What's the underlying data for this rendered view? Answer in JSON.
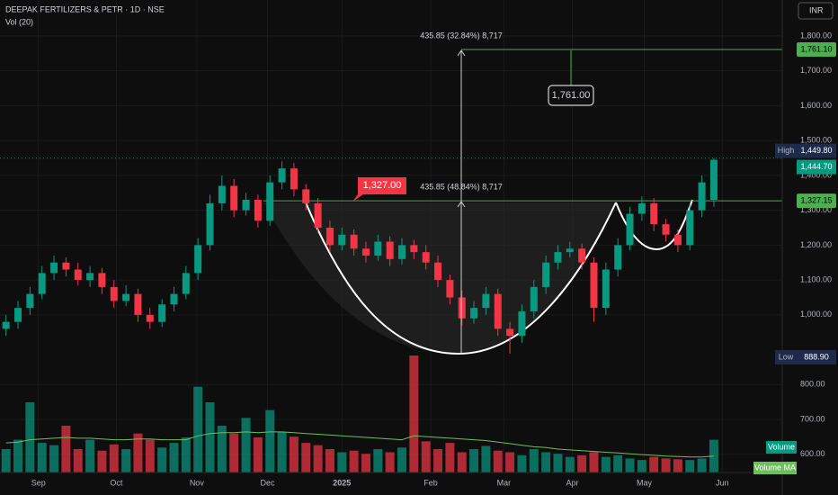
{
  "chart_data": {
    "type": "candlestick",
    "title": "DEEPAK FERTILIZERS & PETR · 1D · NSE",
    "subtitle": "Vol (20)",
    "currency": "INR",
    "up_color": "#089981",
    "down_color": "#f23645",
    "grid": true,
    "xlim": [
      -0.5,
      64.7
    ],
    "ylim": [
      548,
      1903
    ],
    "xticks": [
      {
        "value": 2.7,
        "label": "Sep"
      },
      {
        "value": 9.2,
        "label": "Oct"
      },
      {
        "value": 15.9,
        "label": "Nov"
      },
      {
        "value": 21.8,
        "label": "Dec"
      },
      {
        "value": 28.0,
        "label": "2025"
      },
      {
        "value": 35.4,
        "label": "Feb"
      },
      {
        "value": 41.5,
        "label": "Mar"
      },
      {
        "value": 47.2,
        "label": "Apr"
      },
      {
        "value": 53.2,
        "label": "May"
      },
      {
        "value": 59.7,
        "label": "Jun"
      }
    ],
    "yticks": [
      {
        "value": 1800,
        "label": "1,800.00"
      },
      {
        "value": 1700,
        "label": "1,700.00"
      },
      {
        "value": 1600,
        "label": "1,600.00"
      },
      {
        "value": 1500,
        "label": "1,500.00"
      },
      {
        "value": 1400,
        "label": "1,400.00"
      },
      {
        "value": 1300,
        "label": "1,300.00"
      },
      {
        "value": 1200,
        "label": "1,200.00"
      },
      {
        "value": 1100,
        "label": "1,100.00"
      },
      {
        "value": 1000,
        "label": "1,000.00"
      },
      {
        "value": 800,
        "label": "800.00"
      },
      {
        "value": 700,
        "label": "700.00"
      },
      {
        "value": 600,
        "label": "600.00"
      }
    ],
    "open": [
      960,
      980,
      1020,
      1060,
      1120,
      1150,
      1130,
      1100,
      1120,
      1080,
      1040,
      1060,
      1000,
      980,
      1030,
      1060,
      1120,
      1200,
      1320,
      1370,
      1300,
      1330,
      1270,
      1380,
      1420,
      1360,
      1320,
      1250,
      1200,
      1230,
      1190,
      1170,
      1210,
      1160,
      1200,
      1180,
      1150,
      1100,
      1050,
      990,
      1020,
      1060,
      960,
      940,
      1010,
      1080,
      1150,
      1180,
      1190,
      1150,
      1020,
      1130,
      1200,
      1290,
      1320,
      1260,
      1230,
      1200,
      1300,
      1330
    ],
    "high": [
      1000,
      1040,
      1080,
      1140,
      1170,
      1165,
      1150,
      1140,
      1135,
      1100,
      1085,
      1075,
      1020,
      1045,
      1080,
      1140,
      1220,
      1345,
      1400,
      1390,
      1350,
      1345,
      1400,
      1440,
      1435,
      1375,
      1335,
      1270,
      1250,
      1245,
      1210,
      1230,
      1225,
      1220,
      1215,
      1200,
      1170,
      1115,
      1070,
      1040,
      1080,
      1075,
      980,
      1030,
      1100,
      1170,
      1200,
      1210,
      1205,
      1165,
      1150,
      1220,
      1310,
      1340,
      1335,
      1275,
      1245,
      1320,
      1400,
      1449.8
    ],
    "low": [
      940,
      960,
      1000,
      1045,
      1100,
      1110,
      1085,
      1080,
      1060,
      1020,
      1025,
      980,
      960,
      965,
      1010,
      1045,
      1100,
      1185,
      1300,
      1280,
      1285,
      1250,
      1255,
      1360,
      1340,
      1300,
      1235,
      1180,
      1185,
      1170,
      1150,
      1155,
      1140,
      1145,
      1160,
      1130,
      1080,
      1030,
      970,
      975,
      1000,
      940,
      888.9,
      920,
      990,
      1060,
      1130,
      1165,
      1130,
      980,
      1000,
      1110,
      1185,
      1270,
      1240,
      1210,
      1180,
      1185,
      1280,
      1310
    ],
    "close": [
      980,
      1020,
      1060,
      1120,
      1150,
      1130,
      1100,
      1120,
      1080,
      1040,
      1060,
      1000,
      980,
      1030,
      1060,
      1120,
      1200,
      1320,
      1370,
      1300,
      1330,
      1270,
      1380,
      1420,
      1360,
      1320,
      1250,
      1200,
      1230,
      1190,
      1170,
      1210,
      1160,
      1200,
      1180,
      1150,
      1100,
      1050,
      990,
      1020,
      1060,
      960,
      940,
      1010,
      1080,
      1150,
      1180,
      1190,
      1150,
      1020,
      1130,
      1200,
      1290,
      1320,
      1260,
      1230,
      1200,
      1300,
      1380,
      1444.7
    ],
    "volume": [
      300,
      420,
      900,
      380,
      350,
      600,
      300,
      420,
      280,
      360,
      300,
      500,
      420,
      320,
      380,
      450,
      1100,
      900,
      600,
      500,
      700,
      450,
      800,
      520,
      460,
      380,
      350,
      300,
      260,
      280,
      240,
      300,
      260,
      320,
      1500,
      400,
      300,
      380,
      260,
      300,
      340,
      280,
      260,
      220,
      300,
      260,
      240,
      200,
      220,
      260,
      200,
      220,
      180,
      160,
      200,
      180,
      170,
      160,
      180,
      420
    ],
    "volume_ma": [
      380,
      390,
      420,
      430,
      440,
      450,
      440,
      440,
      430,
      420,
      420,
      430,
      430,
      420,
      420,
      420,
      470,
      500,
      510,
      510,
      520,
      510,
      520,
      520,
      510,
      500,
      490,
      480,
      470,
      460,
      450,
      440,
      430,
      420,
      470,
      460,
      450,
      440,
      430,
      420,
      410,
      390,
      370,
      350,
      330,
      320,
      300,
      290,
      280,
      270,
      260,
      250,
      240,
      230,
      220,
      210,
      205,
      200,
      200,
      210
    ],
    "volume_legend": "Volume",
    "volume_ma_legend": "Volume MA",
    "levels": [
      {
        "value": 1761.1,
        "label": "1,761.10"
      },
      {
        "value": 1327.15,
        "label": "1,327.15"
      }
    ],
    "high_tag": {
      "name": "High",
      "value": 1449.8,
      "label": "1,449.80"
    },
    "last_tag": {
      "value": 1444.7,
      "label": "1,444.70"
    },
    "low_tag": {
      "name": "Low",
      "value": 888.9,
      "label": "888.90"
    },
    "annotations": {
      "measure_top": "435.85 (32.84%) 8,717",
      "target": "1,761.00",
      "measure_mid": "435.85 (48.84%) 8,717",
      "neckline": "1,327.00"
    }
  }
}
